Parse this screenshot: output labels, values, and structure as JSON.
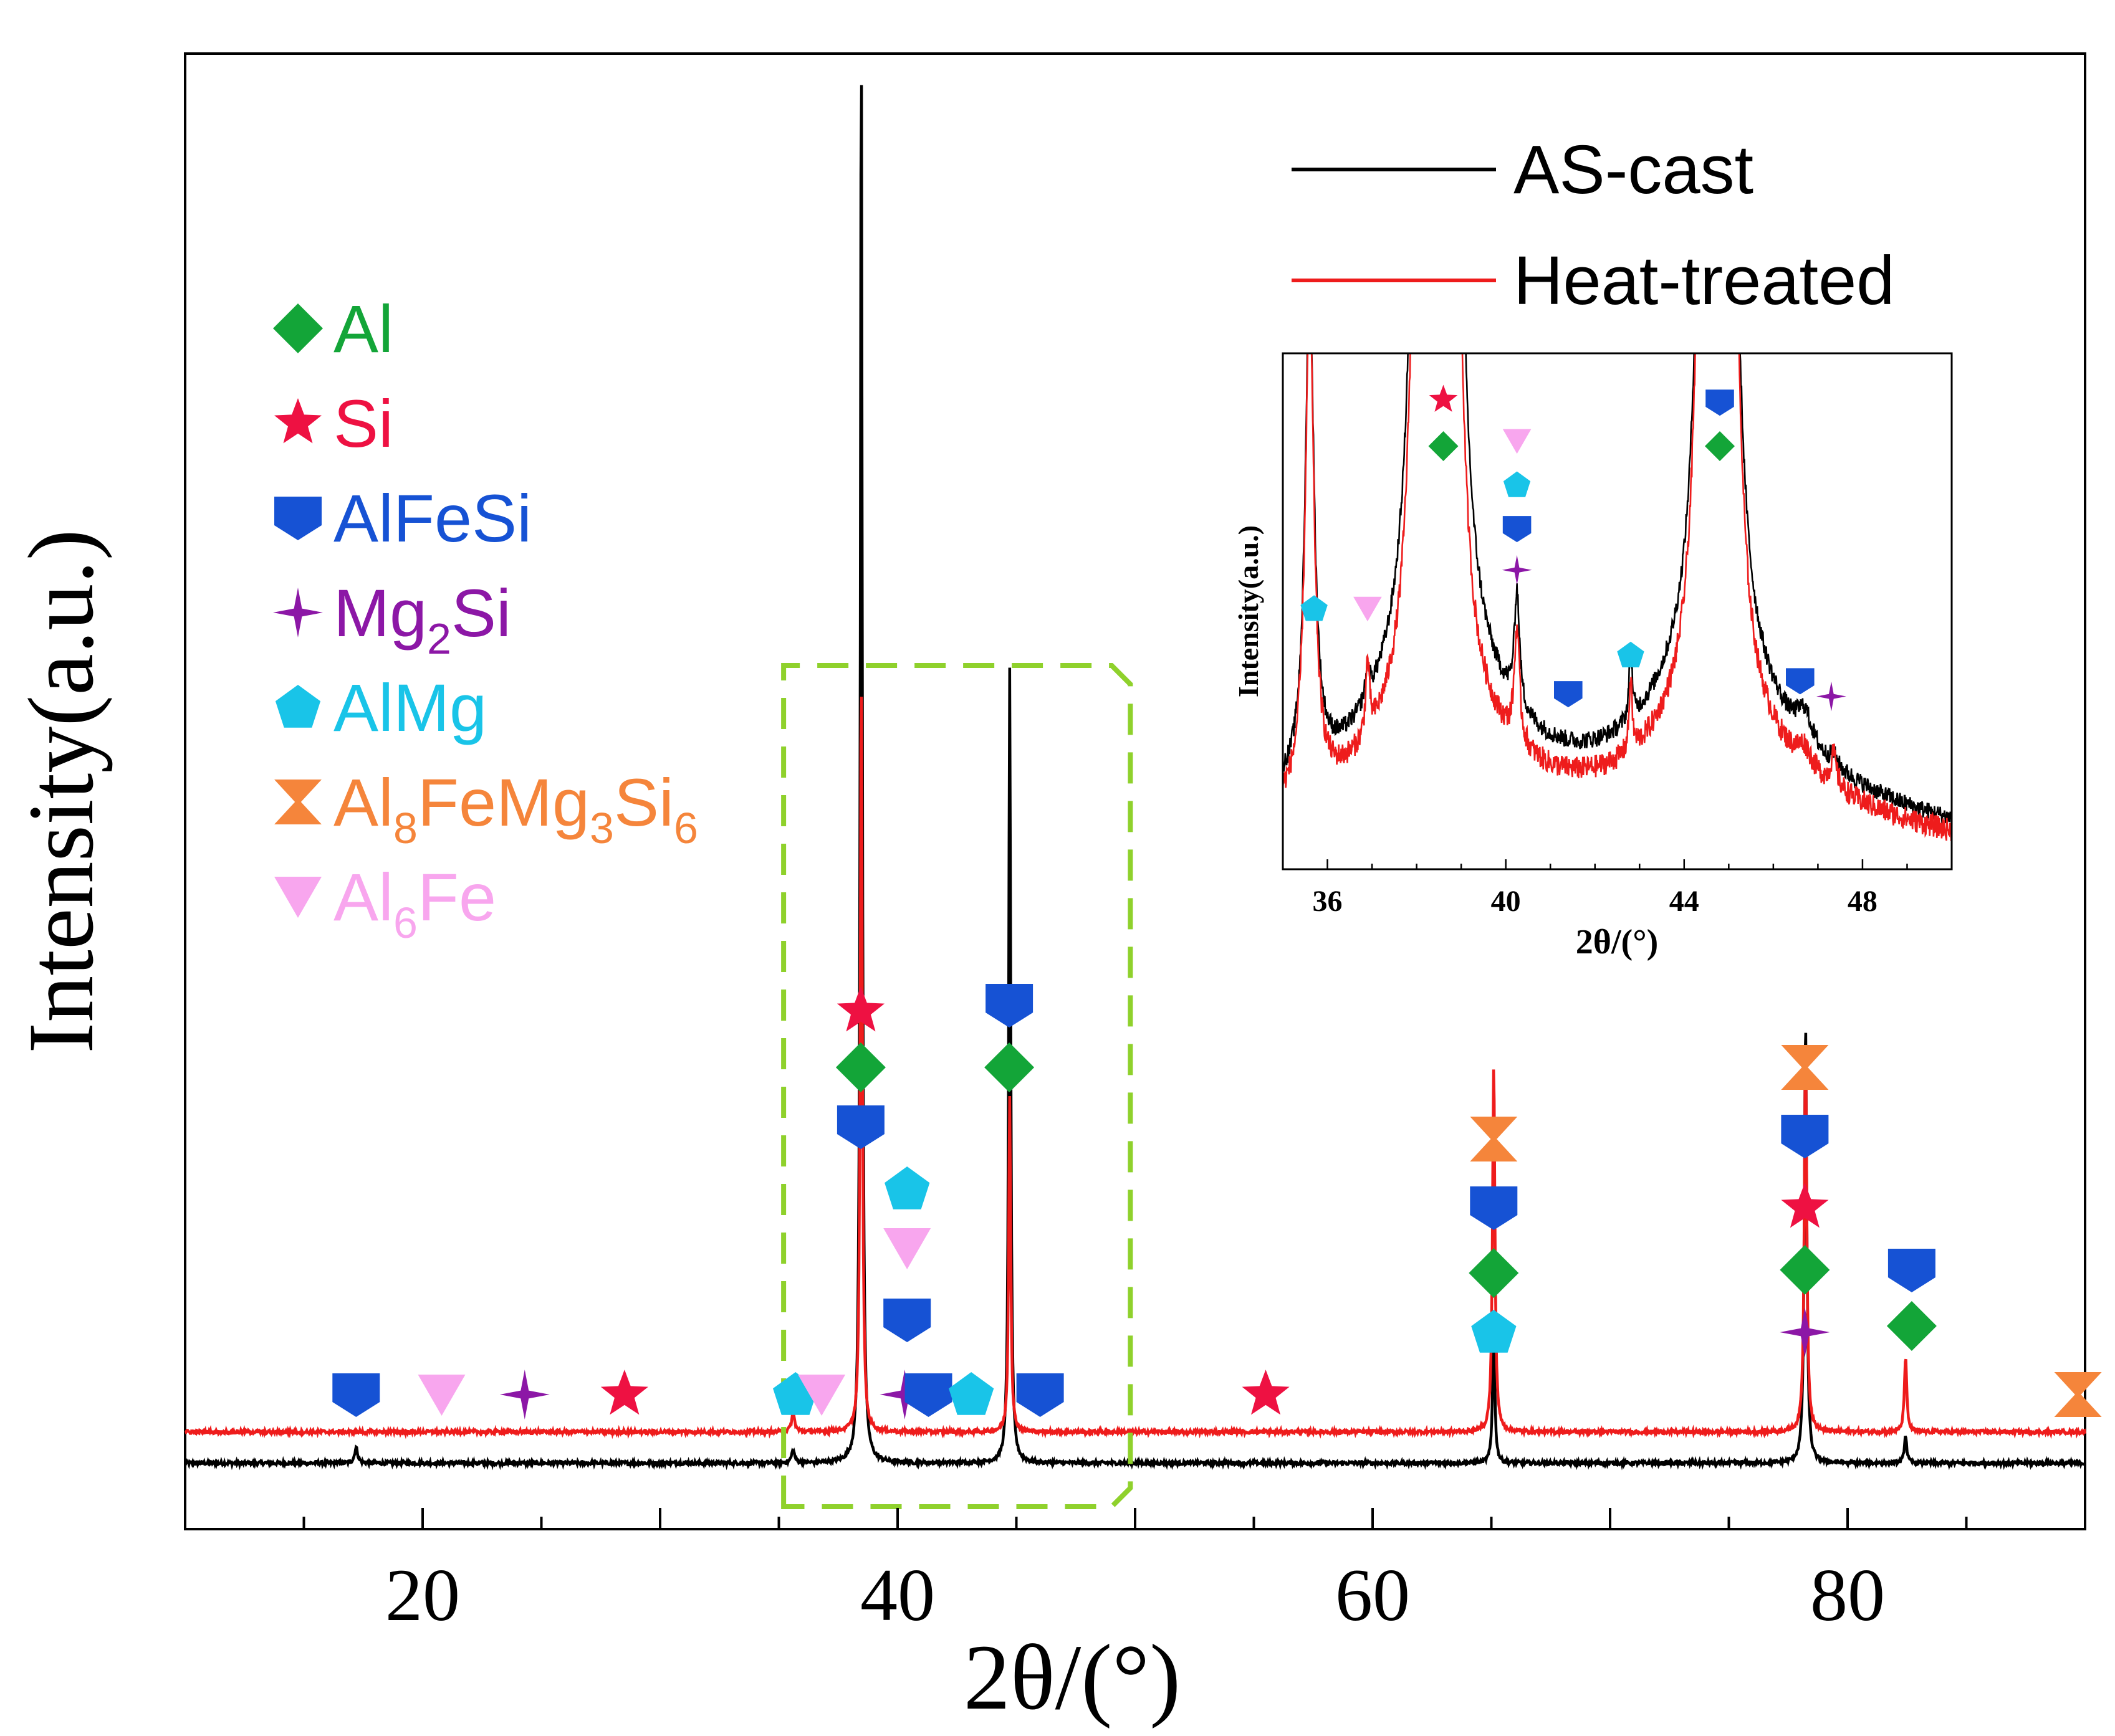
{
  "chart_data": {
    "type": "line",
    "xlabel": "2θ/(°)",
    "ylabel": "Intensity(a.u.)",
    "xlim": [
      10,
      90
    ],
    "xticks": [
      20,
      40,
      60,
      80
    ],
    "grid": false,
    "series": [
      {
        "name": "AS-cast",
        "color": "#000000",
        "baseline": 0.4,
        "peaks": [
          {
            "x": 17.2,
            "h": 0.5,
            "w": 0.08
          },
          {
            "x": 35.6,
            "h": 0.4,
            "w": 0.08
          },
          {
            "x": 38.47,
            "h": 46.0,
            "w": 0.05
          },
          {
            "x": 44.72,
            "h": 25.5,
            "w": 0.05
          },
          {
            "x": 65.1,
            "h": 4.0,
            "w": 0.06
          },
          {
            "x": 78.23,
            "h": 14.2,
            "w": 0.06
          },
          {
            "x": 82.44,
            "h": 0.9,
            "w": 0.06
          }
        ]
      },
      {
        "name": "Heat-treated",
        "color": "#ee1c1c",
        "baseline": 1.4,
        "peaks": [
          {
            "x": 35.6,
            "h": 0.6,
            "w": 0.08
          },
          {
            "x": 38.47,
            "h": 24.5,
            "w": 0.05
          },
          {
            "x": 44.72,
            "h": 10.8,
            "w": 0.05
          },
          {
            "x": 65.1,
            "h": 11.8,
            "w": 0.06
          },
          {
            "x": 78.23,
            "h": 12.8,
            "w": 0.06
          },
          {
            "x": 82.44,
            "h": 2.4,
            "w": 0.06
          }
        ]
      }
    ],
    "phases": [
      {
        "key": "Al",
        "label": "Al",
        "sub": "",
        "color": "#13a538",
        "shape": "diamond"
      },
      {
        "key": "Si",
        "label": "Si",
        "sub": "",
        "color": "#ee1142",
        "shape": "star"
      },
      {
        "key": "AlFeSi",
        "label": "AlFeSi",
        "sub": "",
        "color": "#1652d4",
        "shape": "shield"
      },
      {
        "key": "Mg2Si",
        "label": "Mg{2}Si",
        "sub": "",
        "color": "#8c17a6",
        "shape": "star4"
      },
      {
        "key": "AlMg",
        "label": "AlMg",
        "sub": "",
        "color": "#19c4e8",
        "shape": "pentagon"
      },
      {
        "key": "Al8FeMg3Si6",
        "label": "Al{8}FeMg{3}Si{6}",
        "sub": "",
        "color": "#f5853b",
        "shape": "hourglass"
      },
      {
        "key": "Al6Fe",
        "label": "Al{6}Fe",
        "sub": "",
        "color": "#f8a6ee",
        "shape": "triangle-down"
      }
    ],
    "markers": [
      {
        "phase": "AlFeSi",
        "x": 17.2,
        "y": 2.6
      },
      {
        "phase": "Al6Fe",
        "x": 20.8,
        "y": 2.6
      },
      {
        "phase": "Mg2Si",
        "x": 24.3,
        "y": 2.6
      },
      {
        "phase": "Si",
        "x": 28.5,
        "y": 2.6
      },
      {
        "phase": "AlMg",
        "x": 35.7,
        "y": 2.6
      },
      {
        "phase": "Al6Fe",
        "x": 36.8,
        "y": 2.6
      },
      {
        "phase": "Mg2Si",
        "x": 40.3,
        "y": 2.6
      },
      {
        "phase": "AlFeSi",
        "x": 41.3,
        "y": 2.6
      },
      {
        "phase": "AlMg",
        "x": 43.1,
        "y": 2.6
      },
      {
        "phase": "AlFeSi",
        "x": 46.0,
        "y": 2.6
      },
      {
        "phase": "Si",
        "x": 55.5,
        "y": 2.6
      },
      {
        "phase": "AlFeSi",
        "x": 38.45,
        "y": 11.2
      },
      {
        "phase": "Al",
        "x": 38.45,
        "y": 13.1
      },
      {
        "phase": "Si",
        "x": 38.45,
        "y": 14.9
      },
      {
        "phase": "AlFeSi",
        "x": 40.4,
        "y": 5.0
      },
      {
        "phase": "Al6Fe",
        "x": 40.4,
        "y": 7.3
      },
      {
        "phase": "AlMg",
        "x": 40.4,
        "y": 9.2
      },
      {
        "phase": "Al",
        "x": 44.7,
        "y": 13.1
      },
      {
        "phase": "AlFeSi",
        "x": 44.7,
        "y": 15.1
      },
      {
        "phase": "AlMg",
        "x": 65.1,
        "y": 4.6
      },
      {
        "phase": "Al",
        "x": 65.1,
        "y": 6.5
      },
      {
        "phase": "AlFeSi",
        "x": 65.1,
        "y": 8.6
      },
      {
        "phase": "Al8FeMg3Si6",
        "x": 65.1,
        "y": 10.8
      },
      {
        "phase": "Mg2Si",
        "x": 78.2,
        "y": 4.6
      },
      {
        "phase": "Al",
        "x": 78.2,
        "y": 6.6
      },
      {
        "phase": "Si",
        "x": 78.2,
        "y": 8.6
      },
      {
        "phase": "AlFeSi",
        "x": 78.2,
        "y": 10.9
      },
      {
        "phase": "Al8FeMg3Si6",
        "x": 78.2,
        "y": 13.1
      },
      {
        "phase": "AlFeSi",
        "x": 82.7,
        "y": 6.6
      },
      {
        "phase": "Al",
        "x": 82.7,
        "y": 4.8
      },
      {
        "phase": "Al8FeMg3Si6",
        "x": 89.7,
        "y": 2.6
      }
    ],
    "inset": {
      "xlabel": "2θ/(°)",
      "ylabel": "Intensity(a.u.)",
      "xlim": [
        35,
        50
      ],
      "xticks": [
        36,
        40,
        44,
        48
      ],
      "markers": [
        {
          "phase": "AlMg",
          "x": 35.7,
          "y": 0.505
        },
        {
          "phase": "Al6Fe",
          "x": 36.9,
          "y": 0.505
        },
        {
          "phase": "Al",
          "x": 38.6,
          "y": 0.82
        },
        {
          "phase": "Si",
          "x": 38.6,
          "y": 0.91
        },
        {
          "phase": "Mg2Si",
          "x": 40.25,
          "y": 0.58
        },
        {
          "phase": "AlFeSi",
          "x": 40.25,
          "y": 0.66
        },
        {
          "phase": "AlMg",
          "x": 40.25,
          "y": 0.745
        },
        {
          "phase": "Al6Fe",
          "x": 40.25,
          "y": 0.83
        },
        {
          "phase": "AlFeSi",
          "x": 41.4,
          "y": 0.34
        },
        {
          "phase": "AlMg",
          "x": 42.8,
          "y": 0.415
        },
        {
          "phase": "Al",
          "x": 44.8,
          "y": 0.82
        },
        {
          "phase": "AlFeSi",
          "x": 44.8,
          "y": 0.905
        },
        {
          "phase": "AlFeSi",
          "x": 46.6,
          "y": 0.365
        },
        {
          "phase": "Mg2Si",
          "x": 47.3,
          "y": 0.335
        }
      ]
    },
    "zoom_box": {
      "x0": 35.2,
      "x1": 49.8
    }
  }
}
